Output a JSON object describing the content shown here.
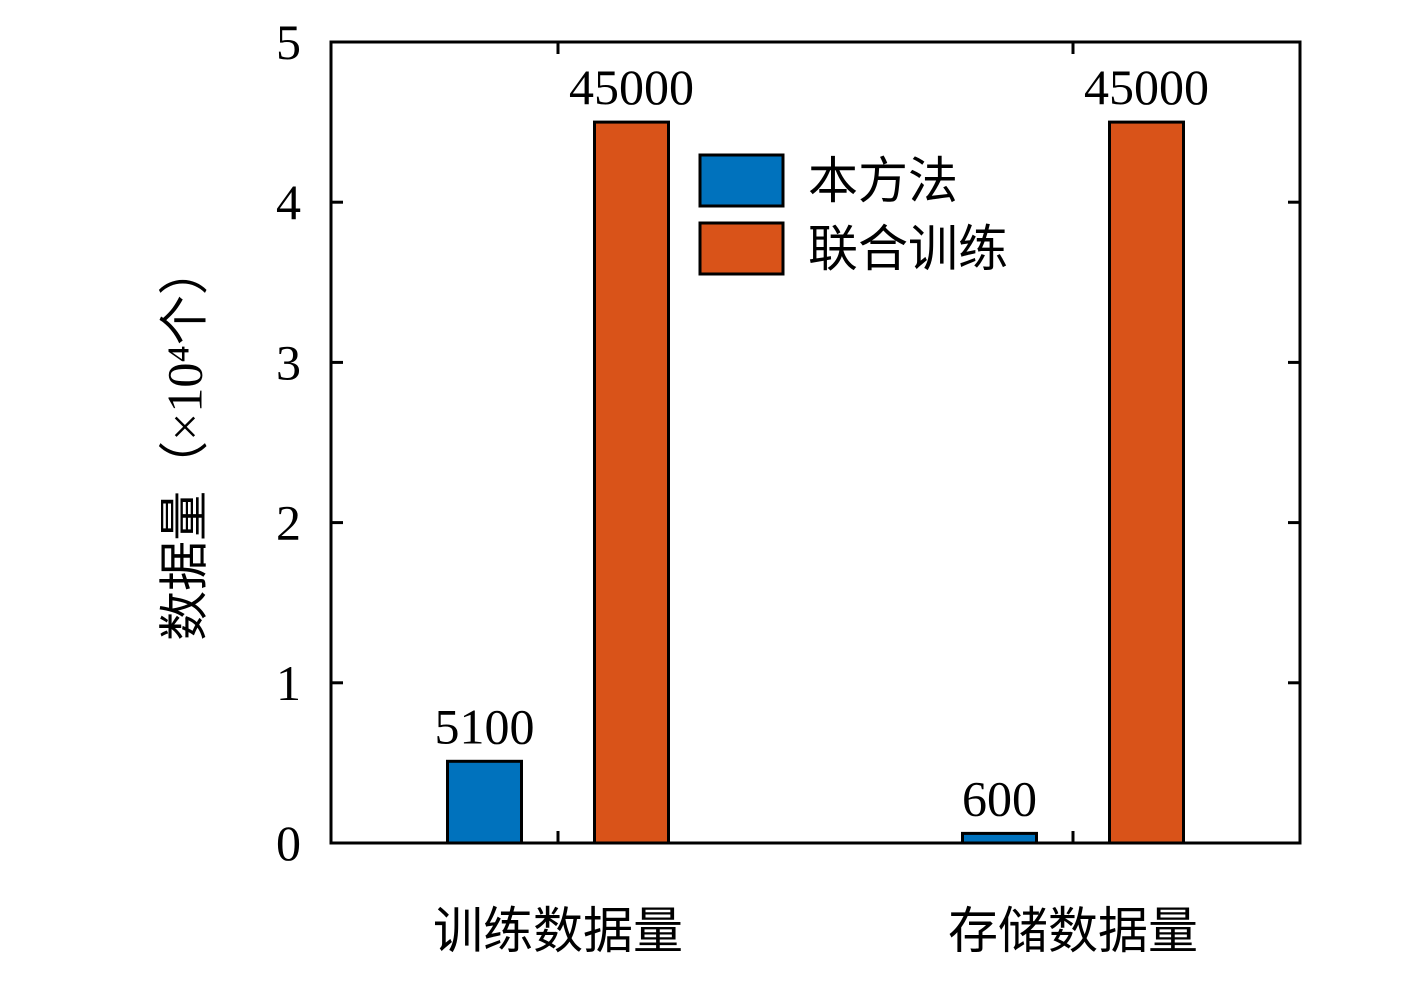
{
  "chart_data": {
    "type": "bar",
    "ylabel": "数据量（×10⁴个）",
    "categories": [
      "训练数据量",
      "存储数据量"
    ],
    "series": [
      {
        "name": "本方法",
        "color": "#0072bd",
        "values": [
          0.51,
          0.06
        ],
        "value_labels": [
          "5100",
          "600"
        ]
      },
      {
        "name": "联合训练",
        "color": "#d95319",
        "values": [
          4.5,
          4.5
        ],
        "value_labels": [
          "45000",
          "45000"
        ]
      }
    ],
    "ylim": [
      0,
      5
    ],
    "yticks": [
      0,
      1,
      2,
      3,
      4,
      5
    ],
    "legend": "top-center"
  }
}
